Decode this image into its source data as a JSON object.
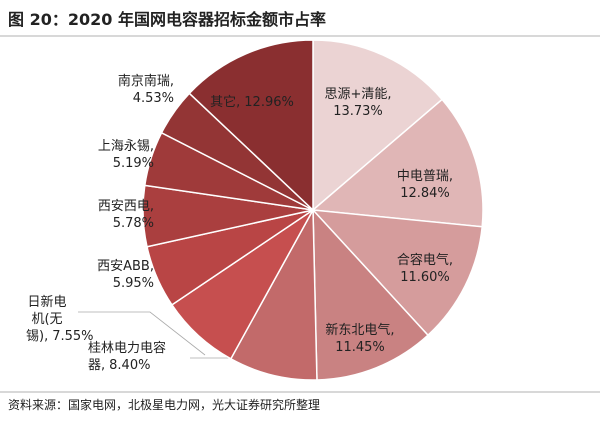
{
  "chart_data": {
    "type": "pie",
    "title": "图 20：2020 年国网电容器招标金额市占率",
    "source": "资料来源：国家电网，北极星电力网，光大证券研究所整理",
    "categories": [
      "思源+清能,",
      "中电普瑞,",
      "合容电气,",
      "新东北电气,",
      "桂林电力电容器,",
      "日新电机(无锡),",
      "西安ABB,",
      "西安西电,",
      "上海永锡,",
      "南京南瑞,",
      "其它,"
    ],
    "values": [
      13.73,
      12.84,
      11.6,
      11.45,
      8.4,
      7.55,
      5.95,
      5.78,
      5.19,
      4.53,
      12.96
    ],
    "value_labels": [
      "13.73%",
      "12.84%",
      "11.60%",
      "11.45%",
      "8.40%",
      "7.55%",
      "5.95%",
      "5.78%",
      "5.19%",
      "4.53%",
      "12.96%"
    ],
    "colors": [
      "#ebd3d3",
      "#e0b6b6",
      "#d59c9c",
      "#c98282",
      "#c26a6a",
      "#c64f4f",
      "#b94545",
      "#aa3f3f",
      "#9f3a3a",
      "#933535",
      "#8a2f30"
    ]
  }
}
